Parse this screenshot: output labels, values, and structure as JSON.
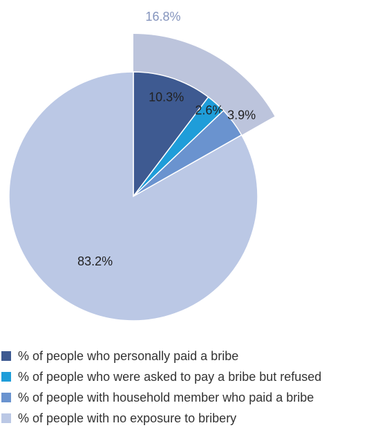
{
  "chart_data": {
    "type": "pie",
    "slices": [
      {
        "label": "% of people who personally paid a bribe",
        "value": 10.3,
        "value_label": "10.3%",
        "color": "#3e5a91"
      },
      {
        "label": "% of people who were asked to pay a bribe but refused",
        "value": 2.6,
        "value_label": "2.6%",
        "color": "#1f9dd9"
      },
      {
        "label": "% of people with household member who paid a bribe",
        "value": 3.9,
        "value_label": "3.9%",
        "color": "#6a93cf"
      },
      {
        "label": "% of people with no exposure to bribery",
        "value": 83.2,
        "value_label": "83.2%",
        "color": "#bbc8e5"
      }
    ],
    "exploded_group": {
      "value": 16.8,
      "label": "16.8%",
      "color": "#bcc4dc",
      "label_color": "#8494bd"
    },
    "legend_position": "bottom"
  }
}
